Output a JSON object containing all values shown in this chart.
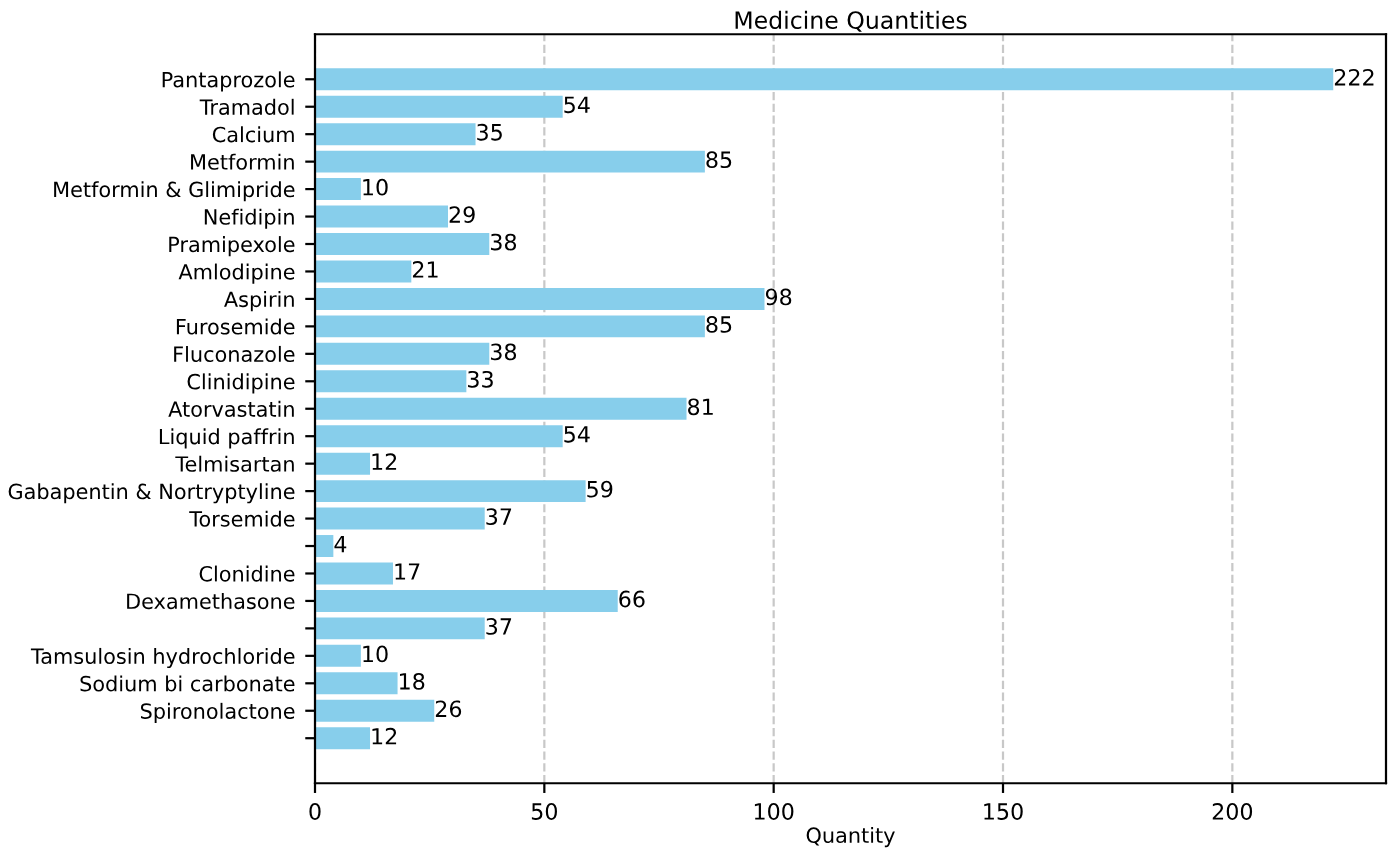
{
  "chart_data": {
    "type": "bar",
    "orientation": "horizontal",
    "title": "Medicine Quantities",
    "xlabel": "Quantity",
    "categories": [
      "Pantaprozole",
      "Tramadol",
      "Calcium",
      "Metformin",
      "Metformin & Glimipride",
      "Nefidipin",
      "Pramipexole",
      "Amlodipine",
      "Aspirin",
      "Furosemide",
      "Fluconazole",
      "Clinidipine",
      "Atorvastatin",
      "Liquid paffrin",
      "Telmisartan",
      "Gabapentin & Nortryptyline",
      "Torsemide",
      null,
      "Clonidine",
      "Dexamethasone",
      null,
      "Tamsulosin hydrochloride",
      "Sodium bi carbonate",
      "Spironolactone",
      null
    ],
    "values": [
      222,
      54,
      35,
      85,
      10,
      29,
      38,
      21,
      98,
      85,
      38,
      33,
      81,
      54,
      12,
      59,
      37,
      4,
      17,
      66,
      37,
      10,
      18,
      26,
      12
    ],
    "color": "#87ceeb",
    "xlim": [
      0,
      233.5
    ],
    "xticks": [
      0,
      50,
      100,
      150,
      200
    ],
    "grid": "x",
    "line_style": "dashed",
    "data_labels": true
  }
}
